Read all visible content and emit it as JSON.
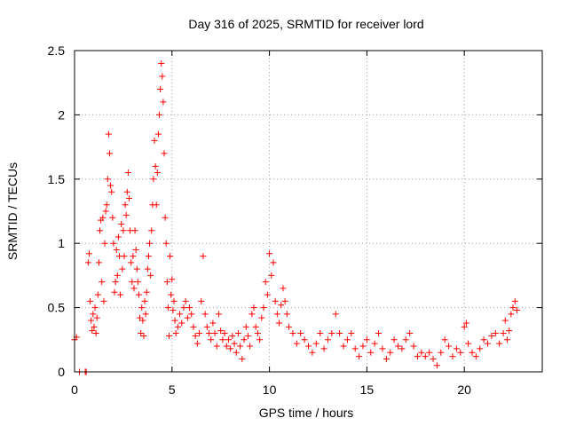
{
  "chart_data": {
    "type": "scatter",
    "title": "Day 316 of 2025, SRMTID for receiver lord",
    "xlabel": "GPS time / hours",
    "ylabel": "SRMTID / TECUs",
    "xlim": [
      0,
      24
    ],
    "ylim": [
      0,
      2.5
    ],
    "grid": true,
    "marker": "+",
    "color": "#ff0000",
    "x_ticks": [
      {
        "value": 0,
        "label": "0"
      },
      {
        "value": 5,
        "label": "5"
      },
      {
        "value": 10,
        "label": "10"
      },
      {
        "value": 15,
        "label": "15"
      },
      {
        "value": 20,
        "label": "20"
      }
    ],
    "y_ticks": [
      {
        "value": 0,
        "label": "0"
      },
      {
        "value": 0.5,
        "label": "0.5"
      },
      {
        "value": 1,
        "label": "1"
      },
      {
        "value": 1.5,
        "label": "1.5"
      },
      {
        "value": 2,
        "label": "2"
      },
      {
        "value": 2.5,
        "label": "2.5"
      }
    ],
    "series": [
      {
        "name": "SRMTID",
        "points": [
          [
            0.0,
            0.25
          ],
          [
            0.1,
            0.27
          ],
          [
            0.25,
            0.0
          ],
          [
            0.55,
            0.0
          ],
          [
            0.6,
            0.0
          ],
          [
            0.7,
            0.85
          ],
          [
            0.75,
            0.92
          ],
          [
            0.8,
            0.55
          ],
          [
            0.85,
            0.4
          ],
          [
            0.9,
            0.32
          ],
          [
            0.95,
            0.45
          ],
          [
            1.0,
            0.35
          ],
          [
            1.05,
            0.5
          ],
          [
            1.1,
            0.3
          ],
          [
            1.15,
            0.42
          ],
          [
            1.2,
            0.6
          ],
          [
            1.25,
            0.85
          ],
          [
            1.3,
            1.1
          ],
          [
            1.35,
            1.18
          ],
          [
            1.4,
            0.7
          ],
          [
            1.45,
            1.2
          ],
          [
            1.5,
            0.55
          ],
          [
            1.55,
            1.0
          ],
          [
            1.6,
            1.25
          ],
          [
            1.65,
            1.3
          ],
          [
            1.7,
            1.5
          ],
          [
            1.75,
            1.85
          ],
          [
            1.8,
            1.7
          ],
          [
            1.85,
            1.45
          ],
          [
            1.9,
            1.4
          ],
          [
            1.95,
            1.2
          ],
          [
            2.0,
            1.0
          ],
          [
            2.05,
            0.62
          ],
          [
            2.1,
            0.7
          ],
          [
            2.15,
            0.95
          ],
          [
            2.2,
            0.75
          ],
          [
            2.25,
            1.05
          ],
          [
            2.3,
            0.9
          ],
          [
            2.35,
            0.6
          ],
          [
            2.4,
            1.15
          ],
          [
            2.45,
            0.8
          ],
          [
            2.5,
            1.1
          ],
          [
            2.55,
            0.9
          ],
          [
            2.6,
            1.3
          ],
          [
            2.65,
            1.22
          ],
          [
            2.7,
            1.4
          ],
          [
            2.75,
            1.55
          ],
          [
            2.8,
            1.35
          ],
          [
            2.85,
            1.1
          ],
          [
            2.9,
            0.85
          ],
          [
            2.95,
            0.7
          ],
          [
            3.0,
            0.9
          ],
          [
            3.05,
            0.65
          ],
          [
            3.1,
            1.1
          ],
          [
            3.15,
            0.95
          ],
          [
            3.2,
            0.8
          ],
          [
            3.25,
            0.7
          ],
          [
            3.3,
            0.6
          ],
          [
            3.35,
            0.42
          ],
          [
            3.4,
            0.3
          ],
          [
            3.45,
            0.5
          ],
          [
            3.5,
            0.4
          ],
          [
            3.55,
            0.28
          ],
          [
            3.6,
            0.55
          ],
          [
            3.65,
            0.45
          ],
          [
            3.7,
            0.62
          ],
          [
            3.75,
            0.8
          ],
          [
            3.8,
            0.9
          ],
          [
            3.85,
            1.0
          ],
          [
            3.9,
            0.75
          ],
          [
            3.95,
            1.1
          ],
          [
            4.0,
            1.3
          ],
          [
            4.05,
            1.5
          ],
          [
            4.1,
            1.8
          ],
          [
            4.15,
            1.6
          ],
          [
            4.2,
            1.3
          ],
          [
            4.25,
            1.55
          ],
          [
            4.3,
            1.85
          ],
          [
            4.35,
            2.0
          ],
          [
            4.4,
            2.2
          ],
          [
            4.45,
            2.4
          ],
          [
            4.5,
            2.3
          ],
          [
            4.55,
            2.1
          ],
          [
            4.6,
            1.7
          ],
          [
            4.65,
            1.2
          ],
          [
            4.7,
            1.0
          ],
          [
            4.75,
            0.7
          ],
          [
            4.8,
            0.5
          ],
          [
            4.85,
            0.28
          ],
          [
            4.9,
            0.9
          ],
          [
            4.95,
            0.6
          ],
          [
            5.0,
            0.72
          ],
          [
            5.05,
            0.48
          ],
          [
            5.1,
            0.55
          ],
          [
            5.15,
            0.4
          ],
          [
            5.2,
            0.3
          ],
          [
            5.3,
            0.35
          ],
          [
            5.4,
            0.45
          ],
          [
            5.5,
            0.38
          ],
          [
            5.6,
            0.5
          ],
          [
            5.7,
            0.55
          ],
          [
            5.8,
            0.42
          ],
          [
            5.9,
            0.5
          ],
          [
            6.0,
            0.45
          ],
          [
            6.1,
            0.35
          ],
          [
            6.2,
            0.28
          ],
          [
            6.3,
            0.22
          ],
          [
            6.4,
            0.3
          ],
          [
            6.5,
            0.55
          ],
          [
            6.6,
            0.9
          ],
          [
            6.7,
            0.45
          ],
          [
            6.8,
            0.35
          ],
          [
            6.9,
            0.3
          ],
          [
            7.0,
            0.25
          ],
          [
            7.1,
            0.38
          ],
          [
            7.2,
            0.3
          ],
          [
            7.3,
            0.2
          ],
          [
            7.4,
            0.45
          ],
          [
            7.5,
            0.32
          ],
          [
            7.6,
            0.25
          ],
          [
            7.7,
            0.3
          ],
          [
            7.8,
            0.2
          ],
          [
            7.9,
            0.25
          ],
          [
            8.0,
            0.18
          ],
          [
            8.1,
            0.28
          ],
          [
            8.2,
            0.22
          ],
          [
            8.3,
            0.15
          ],
          [
            8.4,
            0.3
          ],
          [
            8.5,
            0.2
          ],
          [
            8.6,
            0.1
          ],
          [
            8.7,
            0.25
          ],
          [
            8.8,
            0.35
          ],
          [
            8.9,
            0.28
          ],
          [
            9.0,
            0.2
          ],
          [
            9.1,
            0.45
          ],
          [
            9.2,
            0.5
          ],
          [
            9.3,
            0.35
          ],
          [
            9.4,
            0.3
          ],
          [
            9.5,
            0.25
          ],
          [
            9.6,
            0.42
          ],
          [
            9.7,
            0.5
          ],
          [
            9.8,
            0.7
          ],
          [
            9.9,
            0.6
          ],
          [
            10.0,
            0.92
          ],
          [
            10.1,
            0.75
          ],
          [
            10.2,
            0.85
          ],
          [
            10.3,
            0.55
          ],
          [
            10.4,
            0.45
          ],
          [
            10.5,
            0.38
          ],
          [
            10.6,
            0.52
          ],
          [
            10.7,
            0.65
          ],
          [
            10.8,
            0.55
          ],
          [
            10.9,
            0.45
          ],
          [
            11.0,
            0.35
          ],
          [
            11.2,
            0.3
          ],
          [
            11.4,
            0.22
          ],
          [
            11.6,
            0.3
          ],
          [
            11.8,
            0.25
          ],
          [
            12.0,
            0.2
          ],
          [
            12.2,
            0.15
          ],
          [
            12.4,
            0.22
          ],
          [
            12.6,
            0.3
          ],
          [
            12.8,
            0.18
          ],
          [
            13.0,
            0.25
          ],
          [
            13.2,
            0.3
          ],
          [
            13.4,
            0.45
          ],
          [
            13.6,
            0.3
          ],
          [
            13.8,
            0.2
          ],
          [
            14.0,
            0.25
          ],
          [
            14.2,
            0.3
          ],
          [
            14.4,
            0.18
          ],
          [
            14.6,
            0.12
          ],
          [
            14.8,
            0.2
          ],
          [
            15.0,
            0.25
          ],
          [
            15.2,
            0.15
          ],
          [
            15.4,
            0.22
          ],
          [
            15.6,
            0.3
          ],
          [
            15.8,
            0.18
          ],
          [
            16.0,
            0.1
          ],
          [
            16.2,
            0.15
          ],
          [
            16.4,
            0.25
          ],
          [
            16.6,
            0.2
          ],
          [
            16.8,
            0.18
          ],
          [
            17.0,
            0.25
          ],
          [
            17.2,
            0.3
          ],
          [
            17.4,
            0.2
          ],
          [
            17.6,
            0.12
          ],
          [
            17.8,
            0.15
          ],
          [
            18.0,
            0.12
          ],
          [
            18.2,
            0.15
          ],
          [
            18.4,
            0.1
          ],
          [
            18.6,
            0.05
          ],
          [
            18.8,
            0.15
          ],
          [
            19.0,
            0.25
          ],
          [
            19.2,
            0.2
          ],
          [
            19.4,
            0.12
          ],
          [
            19.6,
            0.18
          ],
          [
            19.8,
            0.15
          ],
          [
            20.0,
            0.35
          ],
          [
            20.1,
            0.38
          ],
          [
            20.2,
            0.22
          ],
          [
            20.4,
            0.15
          ],
          [
            20.6,
            0.12
          ],
          [
            20.8,
            0.18
          ],
          [
            21.0,
            0.25
          ],
          [
            21.2,
            0.22
          ],
          [
            21.4,
            0.28
          ],
          [
            21.6,
            0.3
          ],
          [
            21.8,
            0.22
          ],
          [
            22.0,
            0.3
          ],
          [
            22.1,
            0.4
          ],
          [
            22.2,
            0.25
          ],
          [
            22.3,
            0.32
          ],
          [
            22.4,
            0.45
          ],
          [
            22.5,
            0.5
          ],
          [
            22.6,
            0.55
          ],
          [
            22.7,
            0.48
          ]
        ]
      }
    ]
  }
}
